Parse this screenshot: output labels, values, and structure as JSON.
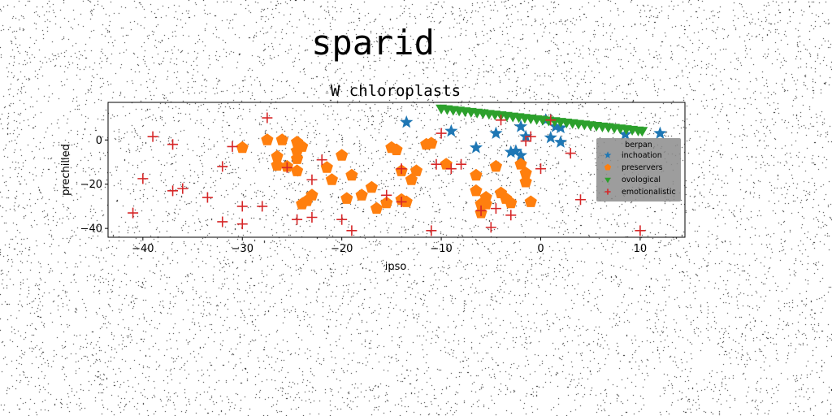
{
  "figure": {
    "suptitle": "sparid"
  },
  "colors": {
    "inchoation": "#1f77b4",
    "preservers": "#ff7f0e",
    "ovological": "#2ca02c",
    "emotionalistic": "#d62728",
    "legend_bg": "#8c8c8c"
  },
  "chart_data": {
    "type": "scatter",
    "title": "W chloroplasts",
    "xlabel": "ipso",
    "ylabel": "prechilled",
    "xlim": [
      -43.5,
      14.5
    ],
    "ylim": [
      -44,
      17
    ],
    "xticks": [
      -40,
      -30,
      -20,
      -10,
      0,
      10
    ],
    "yticks": [
      -40,
      -20,
      0
    ],
    "tick_labels_x": [
      "−40",
      "−30",
      "−20",
      "−10",
      "0",
      "10"
    ],
    "tick_labels_y": [
      "−40",
      "−20",
      "0"
    ],
    "grid": false,
    "legend": {
      "placement": "center-right",
      "title": "berpan"
    },
    "series": [
      {
        "name": "inchoation",
        "marker": "star",
        "x": [
          -13.5,
          -9,
          -6.5,
          -4.5,
          -3,
          -2.5,
          -2,
          -2,
          -1.5,
          0.5,
          1,
          1.5,
          2,
          2,
          8.5,
          12
        ],
        "y": [
          8,
          4,
          -3.5,
          3,
          -5.5,
          -5,
          -7,
          6,
          1.5,
          9,
          1,
          6,
          -1,
          5.5,
          2.5,
          3
        ]
      },
      {
        "name": "preservers",
        "marker": "pentagon",
        "x": [
          -30,
          -27.5,
          -26.5,
          -26.5,
          -26,
          -25.5,
          -24.5,
          -24.5,
          -24.5,
          -24.5,
          -24,
          -24,
          -23.5,
          -23,
          -21.5,
          -21,
          -20,
          -19.5,
          -19,
          -18,
          -17,
          -16.5,
          -15.5,
          -15,
          -14.5,
          -14,
          -14,
          -13.5,
          -13,
          -12.5,
          -11.5,
          -11,
          -9.5,
          -6.5,
          -6.5,
          -6,
          -6,
          -5.5,
          -5.5,
          -4.5,
          -4,
          -3.5,
          -3,
          -2,
          -1.5,
          -1.5,
          -1
        ],
        "y": [
          -3.5,
          0,
          -7.5,
          -11.5,
          0,
          -12,
          -1,
          -5,
          -8.5,
          -14,
          -3,
          -29,
          -27.5,
          -25,
          -12.5,
          -18,
          -7,
          -26.5,
          -16,
          -25,
          -21.5,
          -31,
          -28.5,
          -3.5,
          -4.5,
          -14,
          -27,
          -28,
          -18,
          -14,
          -2,
          -1.5,
          -11,
          -16,
          -23,
          -29,
          -33,
          -26,
          -29,
          -12,
          -24,
          -26.5,
          -28.5,
          -11,
          -15,
          -19,
          -28
        ]
      },
      {
        "name": "ovological",
        "marker": "triangle-down",
        "x": [
          -10,
          -9.4,
          -8.8,
          -8.2,
          -7.6,
          -7,
          -6.4,
          -5.8,
          -5.2,
          -4.6,
          -4,
          -3.4,
          -2.8,
          -2.2,
          -1.6,
          -1,
          -0.4,
          0.2,
          0.8,
          1.4,
          2,
          2.6,
          3.2,
          3.8,
          4.4,
          5,
          5.6,
          6.2,
          6.8,
          7.4,
          8,
          8.6,
          9.2,
          9.8,
          10.2
        ],
        "y": [
          14.5,
          14.2,
          13.9,
          13.6,
          13.3,
          13,
          12.7,
          12.4,
          12.1,
          11.8,
          11.5,
          11.2,
          10.9,
          10.6,
          10.3,
          10,
          9.7,
          9.4,
          9.1,
          8.8,
          8.5,
          8.2,
          7.9,
          7.6,
          7.3,
          7,
          6.7,
          6.4,
          6.1,
          5.8,
          5.5,
          5.2,
          4.9,
          4.6,
          4.4
        ]
      },
      {
        "name": "emotionalistic",
        "marker": "plus",
        "x": [
          -41,
          -40,
          -39,
          -37,
          -37,
          -36,
          -33.5,
          -32,
          -32,
          -31,
          -30,
          -30,
          -28,
          -27.5,
          -25.5,
          -24.5,
          -23,
          -23,
          -22,
          -20,
          -19,
          -15.5,
          -14,
          -14,
          -11,
          -10.5,
          -10,
          -9,
          -8,
          -6,
          -5,
          -4.5,
          -4,
          -3,
          -1.5,
          -1,
          0,
          1,
          3,
          4,
          10
        ],
        "y": [
          -33,
          -17.5,
          1.5,
          -23,
          -2,
          -22,
          -26,
          -12,
          -37,
          -3,
          -30,
          -38,
          -30,
          10,
          -12.5,
          -36,
          -18,
          -35,
          -9,
          -36,
          -41,
          -25,
          -13,
          -28,
          -41,
          -11,
          3,
          -13,
          -11,
          -32,
          -39.5,
          -31,
          9,
          -34,
          -0.5,
          1.5,
          -13,
          9,
          -6,
          -27,
          -41
        ]
      }
    ]
  }
}
